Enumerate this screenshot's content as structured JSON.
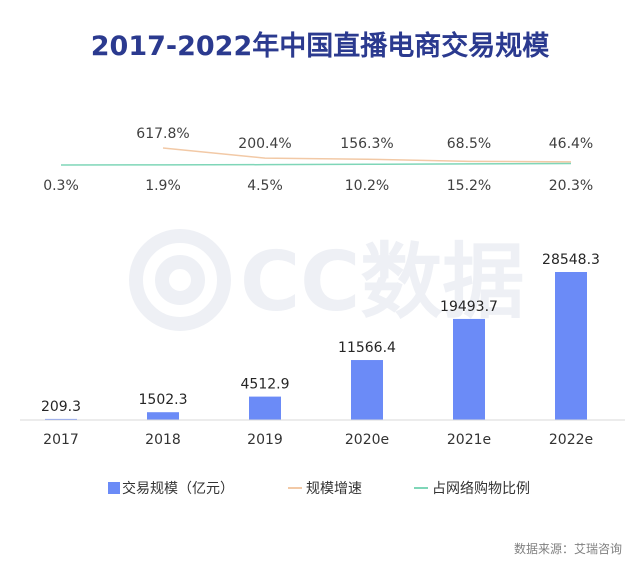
{
  "title": "2017-2022年中国直播电商交易规模",
  "watermark": "CC数据",
  "source": "数据来源：艾瑞咨询",
  "chart_data": {
    "type": "bar",
    "title": "2017-2022年中国直播电商交易规模",
    "categories": [
      "2017",
      "2018",
      "2019",
      "2020e",
      "2021e",
      "2022e"
    ],
    "series": [
      {
        "name": "交易规模（亿元）",
        "type": "bar",
        "values": [
          209.3,
          1502.3,
          4512.9,
          11566.4,
          19493.7,
          28548.3
        ],
        "labels": [
          "209.3",
          "1502.3",
          "4512.9",
          "11566.4",
          "19493.7",
          "28548.3"
        ],
        "color": "#6b8bf7"
      },
      {
        "name": "规模增速",
        "type": "line",
        "values": [
          null,
          617.8,
          200.4,
          156.3,
          68.5,
          46.4
        ],
        "labels": [
          "",
          "617.8%",
          "200.4%",
          "156.3%",
          "68.5%",
          "46.4%"
        ],
        "unit": "%",
        "color": "#f2c9a6"
      },
      {
        "name": "占网络购物比例",
        "type": "line",
        "values": [
          0.3,
          1.9,
          4.5,
          10.2,
          15.2,
          20.3
        ],
        "labels": [
          "0.3%",
          "1.9%",
          "4.5%",
          "10.2%",
          "15.2%",
          "20.3%"
        ],
        "unit": "%",
        "color": "#7fd6b8"
      }
    ],
    "ylim": [
      0,
      28548.3
    ],
    "grid": false,
    "legend_position": "bottom"
  }
}
